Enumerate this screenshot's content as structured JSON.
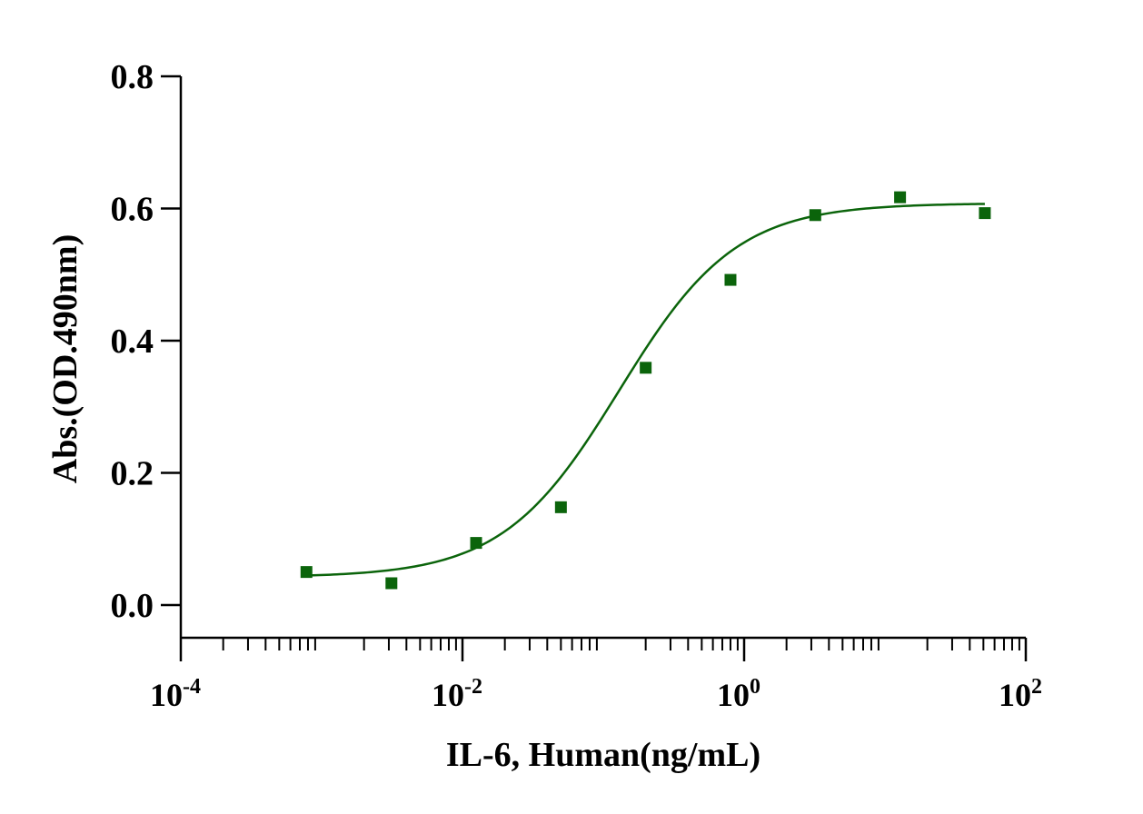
{
  "chart_data": {
    "type": "scatter",
    "title": "",
    "xlabel": "IL-6, Human(ng/mL)",
    "ylabel": "Abs.(OD.490nm)",
    "x_scale": "log10",
    "xlim": [
      0.0001,
      100
    ],
    "ylim": [
      -0.05,
      0.8
    ],
    "y_ticks": [
      {
        "value": 0.0,
        "label": "0.0"
      },
      {
        "value": 0.2,
        "label": "0.2"
      },
      {
        "value": 0.4,
        "label": "0.4"
      },
      {
        "value": 0.6,
        "label": "0.6"
      },
      {
        "value": 0.8,
        "label": "0.8"
      }
    ],
    "x_ticks": [
      {
        "value": 0.0001,
        "base": "10",
        "exp": "-4"
      },
      {
        "value": 0.01,
        "base": "10",
        "exp": "-2"
      },
      {
        "value": 1,
        "base": "10",
        "exp": "0"
      },
      {
        "value": 100,
        "base": "10",
        "exp": "2"
      }
    ],
    "series": [
      {
        "name": "IL-6, Human",
        "color": "#0b640b",
        "marker": "square",
        "x": [
          0.00078,
          0.00313,
          0.0125,
          0.05,
          0.2,
          0.8,
          3.2,
          12.8,
          51.2
        ],
        "y": [
          0.05,
          0.033,
          0.094,
          0.148,
          0.359,
          0.492,
          0.59,
          0.617,
          0.593
        ]
      }
    ],
    "fit": {
      "type": "4PL",
      "color": "#0b640b",
      "bottom": 0.042,
      "top": 0.608,
      "ec50": 0.13,
      "hill": 1.05,
      "x_range": [
        0.00078,
        51.2
      ]
    }
  }
}
